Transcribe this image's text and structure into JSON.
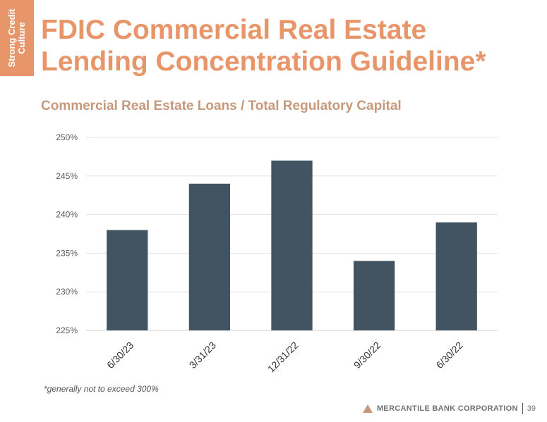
{
  "side_tab": {
    "line1": "Strong Credit",
    "line2": "Culture"
  },
  "title": {
    "line1": "FDIC Commercial Real Estate",
    "line2": "Lending Concentration Guideline*"
  },
  "footnote": "*generally not to exceed 300%",
  "footer": {
    "company": "MERCANTILE BANK CORPORATION",
    "page": "39"
  },
  "colors": {
    "accent": "#e8956a",
    "bar": "#425361",
    "subtitle": "#c8987a"
  },
  "chart_data": {
    "type": "bar",
    "title": "Commercial Real Estate Loans / Total Regulatory Capital",
    "categories": [
      "6/30/23",
      "3/31/23",
      "12/31/22",
      "9/30/22",
      "6/30/22"
    ],
    "values": [
      238,
      244,
      247,
      234,
      239
    ],
    "ylim": [
      225,
      250
    ],
    "yticks": [
      225,
      230,
      235,
      240,
      245,
      250
    ],
    "ytick_labels": [
      "225%",
      "230%",
      "235%",
      "240%",
      "245%",
      "250%"
    ],
    "grid": true,
    "legend": "none"
  }
}
